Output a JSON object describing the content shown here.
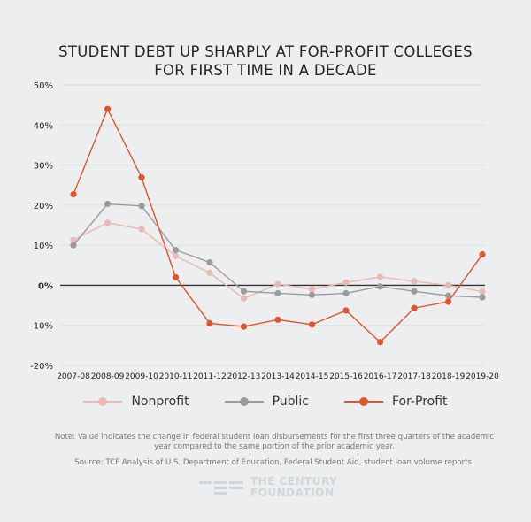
{
  "chart_data": {
    "type": "line",
    "title_lines": [
      "STUDENT DEBT UP SHARPLY AT FOR-PROFIT COLLEGES",
      "FOR FIRST TIME IN A DECADE"
    ],
    "categories": [
      "2007-08",
      "2008-09",
      "2009-10",
      "2010-11",
      "2011-12",
      "2012-13",
      "2013-14",
      "2014-15",
      "2015-16",
      "2016-17",
      "2017-18",
      "2018-19",
      "2019-20"
    ],
    "ylim": [
      -20,
      50
    ],
    "yticks": [
      50,
      40,
      30,
      20,
      10,
      0,
      -10,
      -20
    ],
    "ytick_labels": [
      "50%",
      "40%",
      "30%",
      "20%",
      "10%",
      "0%",
      "-10%",
      "-20%"
    ],
    "grid": true,
    "legend_position": "bottom",
    "series": [
      {
        "name": "Nonprofit",
        "color": "#e9b9b3",
        "values": [
          11.3,
          15.6,
          14.0,
          7.3,
          3.1,
          -3.3,
          0.3,
          -1.0,
          0.7,
          2.1,
          1.0,
          0.0,
          -1.6
        ]
      },
      {
        "name": "Public",
        "color": "#9b9b9b",
        "values": [
          10.0,
          20.3,
          19.8,
          8.8,
          5.7,
          -1.5,
          -2.0,
          -2.4,
          -2.0,
          -0.3,
          -1.5,
          -2.6,
          -3.0
        ]
      },
      {
        "name": "For-Profit",
        "color": "#e0552e",
        "values": [
          22.7,
          44.0,
          26.9,
          2.0,
          -9.5,
          -10.3,
          -8.6,
          -9.8,
          -6.3,
          -14.2,
          -5.7,
          -4.1,
          7.7
        ]
      }
    ]
  },
  "footer": {
    "note": "Note: Value indicates the change in federal student loan disbursements for the first three quarters of the academic year compared to the same portion of the prior academic year.",
    "source": "Source: TCF Analysis of U.S. Department of Education, Federal Student Aid, student loan volume reports.",
    "logo_text": [
      "THE CENTURY",
      "FOUNDATION"
    ]
  }
}
